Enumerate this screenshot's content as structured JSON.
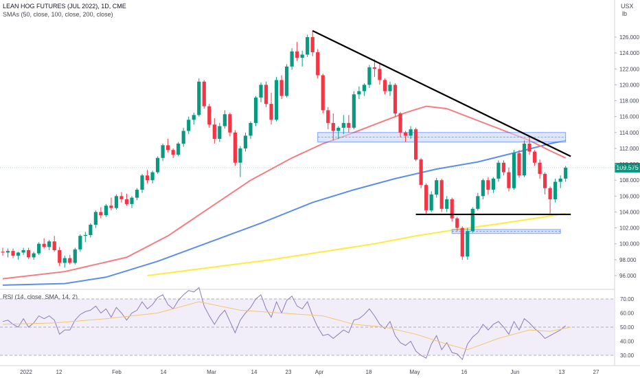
{
  "header": {
    "title": "LEAN HOG FUTURES (JUL 2022), 1D, CME",
    "indicators": "SMAs (50, close, 100, close, 200, close)"
  },
  "axis": {
    "currency": "USX",
    "unit": "lb"
  },
  "last_price": "109.575",
  "rsi_label": "RSI (14, close, SMA, 14, 2)",
  "colors": {
    "up": "#089981",
    "down": "#f23645",
    "sma50": "#f77c80",
    "sma100": "#5b8def",
    "sma200": "#ffeb3b",
    "trendline": "#000000",
    "zone_fill": "#c9d8f7",
    "zone_border": "#2962ff",
    "rsi_line": "#8c7bb8",
    "rsi_sma": "#f2c66d",
    "rsi_band": "#ede7f6"
  },
  "chart_data": {
    "type": "candlestick",
    "price_axis": {
      "ticks": [
        "126.000",
        "124.000",
        "122.000",
        "120.000",
        "118.000",
        "116.000",
        "114.000",
        "112.000",
        "110.000",
        "108.000",
        "106.000",
        "104.000",
        "102.000",
        "100.000",
        "98.000",
        "96.000"
      ]
    },
    "time_axis": {
      "labels": [
        "2022",
        "12",
        "Feb",
        "14",
        "Mar",
        "14",
        "23",
        "Apr",
        "18",
        "May",
        "16",
        "Jun",
        "13",
        "27"
      ]
    },
    "rsi_axis": {
      "ticks": [
        "70.00",
        "60.00",
        "50.00",
        "40.00",
        "30.00"
      ],
      "levels": [
        70,
        50,
        30
      ]
    },
    "last_close": 109.575,
    "candles": [
      [
        99.0,
        99.5,
        98.5,
        98.9
      ],
      [
        98.9,
        99.4,
        98.3,
        99.1
      ],
      [
        99.1,
        99.4,
        98.2,
        98.5
      ],
      [
        98.5,
        99.0,
        98.0,
        98.9
      ],
      [
        98.9,
        99.5,
        98.6,
        99.2
      ],
      [
        99.2,
        99.5,
        98.1,
        98.3
      ],
      [
        98.3,
        99.0,
        98.0,
        98.8
      ],
      [
        98.8,
        100.2,
        98.6,
        100.0
      ],
      [
        100.0,
        100.7,
        99.4,
        99.6
      ],
      [
        99.6,
        100.5,
        99.2,
        100.3
      ],
      [
        100.3,
        101.0,
        99.0,
        99.2
      ],
      [
        99.2,
        99.6,
        97.2,
        97.6
      ],
      [
        97.6,
        98.5,
        97.0,
        98.2
      ],
      [
        98.2,
        98.6,
        97.4,
        97.6
      ],
      [
        97.6,
        99.5,
        97.4,
        99.3
      ],
      [
        99.3,
        101.2,
        99.0,
        101.0
      ],
      [
        101.0,
        101.5,
        100.2,
        101.1
      ],
      [
        101.1,
        102.6,
        100.8,
        102.4
      ],
      [
        102.4,
        104.2,
        102.0,
        104.0
      ],
      [
        104.0,
        104.6,
        103.2,
        103.6
      ],
      [
        103.6,
        105.0,
        103.4,
        104.8
      ],
      [
        104.8,
        105.8,
        104.2,
        104.5
      ],
      [
        104.5,
        106.2,
        104.3,
        106.0
      ],
      [
        106.0,
        106.5,
        105.2,
        105.6
      ],
      [
        105.6,
        106.3,
        104.8,
        105.0
      ],
      [
        105.0,
        106.0,
        104.5,
        105.8
      ],
      [
        105.8,
        107.0,
        105.5,
        106.8
      ],
      [
        106.8,
        108.8,
        106.4,
        108.6
      ],
      [
        108.6,
        109.3,
        107.6,
        108.0
      ],
      [
        108.0,
        109.2,
        107.6,
        109.0
      ],
      [
        109.0,
        111.0,
        108.8,
        110.8
      ],
      [
        110.8,
        112.6,
        110.4,
        112.4
      ],
      [
        112.4,
        113.2,
        111.5,
        111.8
      ],
      [
        111.8,
        112.0,
        110.8,
        111.2
      ],
      [
        111.2,
        112.8,
        111.0,
        112.6
      ],
      [
        112.6,
        114.6,
        112.2,
        114.2
      ],
      [
        114.2,
        116.0,
        113.8,
        115.6
      ],
      [
        115.6,
        116.5,
        115.0,
        116.2
      ],
      [
        116.2,
        120.8,
        116.0,
        120.4
      ],
      [
        120.4,
        120.6,
        117.0,
        117.3
      ],
      [
        117.3,
        117.6,
        114.6,
        115.0
      ],
      [
        115.0,
        115.8,
        112.6,
        113.2
      ],
      [
        113.2,
        115.2,
        112.8,
        114.8
      ],
      [
        114.8,
        116.8,
        114.5,
        116.3
      ],
      [
        116.3,
        116.5,
        113.5,
        114.0
      ],
      [
        114.0,
        114.3,
        109.8,
        110.2
      ],
      [
        110.2,
        112.3,
        108.4,
        112.0
      ],
      [
        112.0,
        114.0,
        111.6,
        113.6
      ],
      [
        113.6,
        115.4,
        113.2,
        115.2
      ],
      [
        115.2,
        118.6,
        114.8,
        118.4
      ],
      [
        118.4,
        120.3,
        117.8,
        120.0
      ],
      [
        120.0,
        120.4,
        117.2,
        117.6
      ],
      [
        117.6,
        119.0,
        115.0,
        115.6
      ],
      [
        115.6,
        121.0,
        115.4,
        120.6
      ],
      [
        120.6,
        121.2,
        118.2,
        118.6
      ],
      [
        118.6,
        122.6,
        118.4,
        122.3
      ],
      [
        122.3,
        124.6,
        121.9,
        124.2
      ],
      [
        124.2,
        125.4,
        123.0,
        123.4
      ],
      [
        123.4,
        124.3,
        122.3,
        123.8
      ],
      [
        123.8,
        126.3,
        123.5,
        126.0
      ],
      [
        126.0,
        126.8,
        123.6,
        124.1
      ],
      [
        124.1,
        124.5,
        120.8,
        121.2
      ],
      [
        121.2,
        121.4,
        116.4,
        116.8
      ],
      [
        116.8,
        117.2,
        114.4,
        115.2
      ],
      [
        115.2,
        116.4,
        113.0,
        114.2
      ],
      [
        114.2,
        114.8,
        113.2,
        114.6
      ],
      [
        114.6,
        116.2,
        113.8,
        115.2
      ],
      [
        115.2,
        116.2,
        114.0,
        114.6
      ],
      [
        114.6,
        119.2,
        114.4,
        118.8
      ],
      [
        118.8,
        119.8,
        118.2,
        119.2
      ],
      [
        119.2,
        120.2,
        118.6,
        120.0
      ],
      [
        120.0,
        122.5,
        119.6,
        122.2
      ],
      [
        122.2,
        123.2,
        121.0,
        122.0
      ],
      [
        122.0,
        122.6,
        120.0,
        120.6
      ],
      [
        120.6,
        120.8,
        118.8,
        119.2
      ],
      [
        119.2,
        120.4,
        118.6,
        120.0
      ],
      [
        120.0,
        120.2,
        116.0,
        116.4
      ],
      [
        116.4,
        116.6,
        113.4,
        114.0
      ],
      [
        114.0,
        114.2,
        112.8,
        113.6
      ],
      [
        113.6,
        114.8,
        113.2,
        114.4
      ],
      [
        114.4,
        114.6,
        110.4,
        110.6
      ],
      [
        110.6,
        110.8,
        107.0,
        107.4
      ],
      [
        107.4,
        107.6,
        103.8,
        104.2
      ],
      [
        104.2,
        106.6,
        104.0,
        106.2
      ],
      [
        106.2,
        108.3,
        105.8,
        108.0
      ],
      [
        108.0,
        108.2,
        104.0,
        104.4
      ],
      [
        104.4,
        106.0,
        104.0,
        105.6
      ],
      [
        105.6,
        105.8,
        102.8,
        103.2
      ],
      [
        103.2,
        103.4,
        101.6,
        102.0
      ],
      [
        102.0,
        102.2,
        98.0,
        98.4
      ],
      [
        98.4,
        102.0,
        98.0,
        101.6
      ],
      [
        101.6,
        104.6,
        101.4,
        104.4
      ],
      [
        104.4,
        106.4,
        104.2,
        106.0
      ],
      [
        106.0,
        108.2,
        105.6,
        108.0
      ],
      [
        108.0,
        108.4,
        106.2,
        106.8
      ],
      [
        106.8,
        108.4,
        106.4,
        108.2
      ],
      [
        108.2,
        110.5,
        107.8,
        110.2
      ],
      [
        110.2,
        110.5,
        108.6,
        109.0
      ],
      [
        109.0,
        109.6,
        106.6,
        107.0
      ],
      [
        107.0,
        111.8,
        106.8,
        111.4
      ],
      [
        111.4,
        111.8,
        108.3,
        108.6
      ],
      [
        108.6,
        113.0,
        108.4,
        112.6
      ],
      [
        112.6,
        113.6,
        111.2,
        111.6
      ],
      [
        111.6,
        111.8,
        109.8,
        110.2
      ],
      [
        110.2,
        110.6,
        108.2,
        108.8
      ],
      [
        108.8,
        109.0,
        106.2,
        107.0
      ],
      [
        107.0,
        107.2,
        103.8,
        105.6
      ],
      [
        105.6,
        108.2,
        105.2,
        107.8
      ],
      [
        107.8,
        108.6,
        107.0,
        108.2
      ],
      [
        108.2,
        109.8,
        107.8,
        109.575
      ]
    ],
    "sma50": {
      "name": "SMA 50",
      "points": [
        [
          0,
          95.6
        ],
        [
          12,
          96.5
        ],
        [
          24,
          98.3
        ],
        [
          32,
          101.0
        ],
        [
          40,
          104.5
        ],
        [
          48,
          108.0
        ],
        [
          56,
          110.8
        ],
        [
          62,
          112.6
        ],
        [
          66,
          113.5
        ],
        [
          72,
          115.0
        ],
        [
          78,
          116.5
        ],
        [
          82,
          117.3
        ],
        [
          86,
          117.0
        ],
        [
          90,
          116.0
        ],
        [
          96,
          114.5
        ],
        [
          102,
          113.0
        ],
        [
          106,
          111.7
        ],
        [
          109,
          110.8
        ]
      ]
    },
    "sma100": {
      "name": "SMA 100",
      "points": [
        [
          0,
          94.8
        ],
        [
          12,
          95.0
        ],
        [
          20,
          95.8
        ],
        [
          30,
          97.8
        ],
        [
          40,
          100.2
        ],
        [
          50,
          102.6
        ],
        [
          60,
          105.2
        ],
        [
          68,
          106.8
        ],
        [
          76,
          108.2
        ],
        [
          84,
          109.4
        ],
        [
          92,
          110.3
        ],
        [
          100,
          111.6
        ],
        [
          106,
          112.6
        ],
        [
          109,
          113.0
        ]
      ]
    },
    "sma200": {
      "name": "SMA 200",
      "points": [
        [
          28,
          96.0
        ],
        [
          40,
          97.0
        ],
        [
          52,
          98.0
        ],
        [
          62,
          99.0
        ],
        [
          72,
          100.0
        ],
        [
          80,
          101.0
        ],
        [
          88,
          101.8
        ],
        [
          96,
          102.5
        ],
        [
          104,
          103.3
        ],
        [
          109,
          103.8
        ]
      ]
    },
    "annotations": {
      "trendline": [
        [
          60,
          126.8
        ],
        [
          110,
          111.0
        ]
      ],
      "resistance_zone": {
        "x": [
          61,
          109
        ],
        "y": [
          112.8,
          114.0
        ]
      },
      "support_line": {
        "x": [
          80,
          110
        ],
        "y": 103.7
      },
      "lower_zone": {
        "x": [
          87,
          108
        ],
        "y": [
          101.3,
          101.8
        ]
      }
    },
    "rsi": [
      54,
      55,
      52,
      50,
      56,
      50,
      53,
      58,
      56,
      58,
      55,
      45,
      48,
      48,
      55,
      59,
      61,
      62,
      65,
      60,
      63,
      57,
      64,
      60,
      55,
      60,
      62,
      68,
      63,
      66,
      71,
      73,
      66,
      63,
      69,
      73,
      76,
      75,
      78,
      65,
      58,
      52,
      58,
      62,
      54,
      46,
      55,
      60,
      64,
      70,
      73,
      63,
      57,
      68,
      60,
      69,
      72,
      65,
      63,
      68,
      58,
      50,
      44,
      45,
      42,
      45,
      48,
      46,
      55,
      56,
      59,
      63,
      58,
      52,
      49,
      54,
      44,
      39,
      37,
      40,
      33,
      30,
      28,
      38,
      44,
      34,
      39,
      32,
      31,
      27,
      38,
      43,
      46,
      52,
      48,
      52,
      54,
      50,
      45,
      54,
      48,
      56,
      53,
      49,
      46,
      42,
      44,
      46,
      48,
      51
    ],
    "rsi_sma": [
      [
        0,
        52
      ],
      [
        10,
        53
      ],
      [
        20,
        56
      ],
      [
        30,
        60
      ],
      [
        38,
        68
      ],
      [
        46,
        62
      ],
      [
        54,
        60
      ],
      [
        62,
        58
      ],
      [
        68,
        52
      ],
      [
        74,
        50
      ],
      [
        80,
        45
      ],
      [
        86,
        38
      ],
      [
        90,
        34
      ],
      [
        96,
        42
      ],
      [
        102,
        48
      ],
      [
        106,
        47
      ],
      [
        110,
        50
      ]
    ]
  }
}
